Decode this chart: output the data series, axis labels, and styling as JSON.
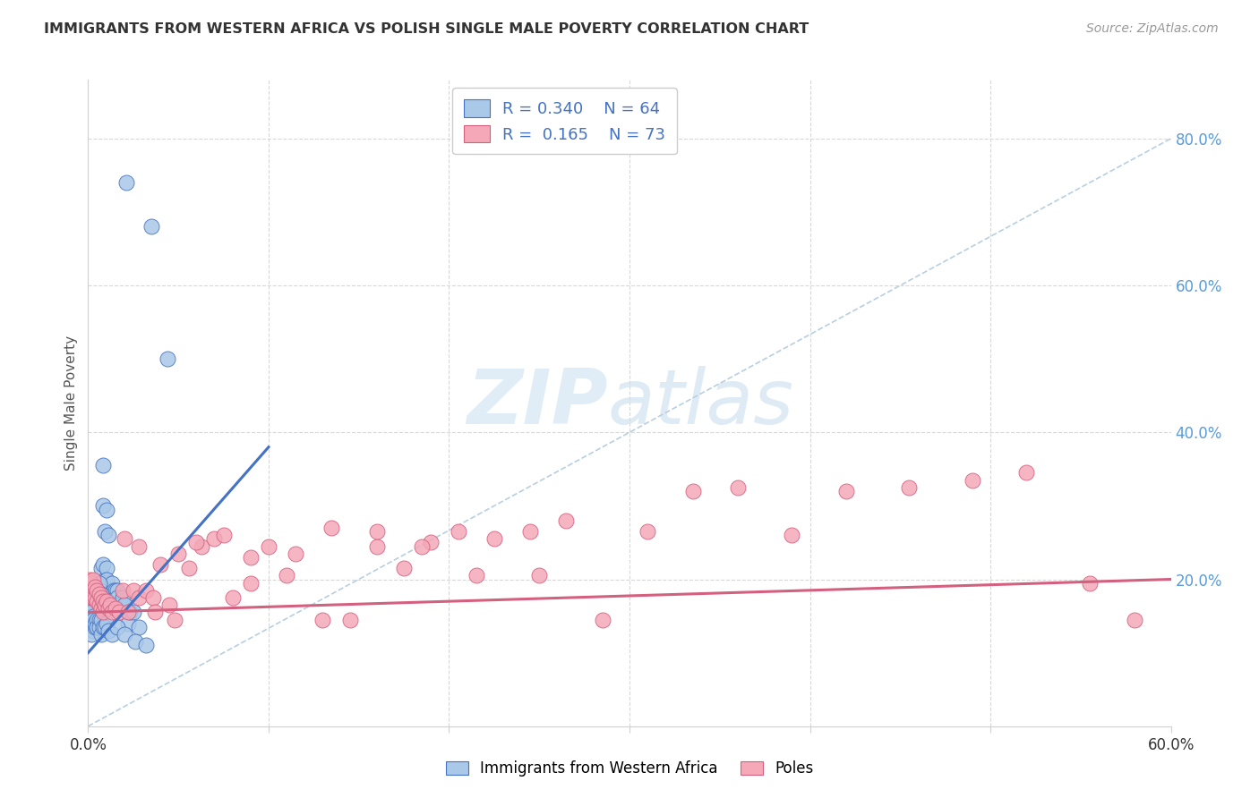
{
  "title": "IMMIGRANTS FROM WESTERN AFRICA VS POLISH SINGLE MALE POVERTY CORRELATION CHART",
  "source": "Source: ZipAtlas.com",
  "ylabel": "Single Male Poverty",
  "xlim": [
    0.0,
    0.6
  ],
  "ylim": [
    0.0,
    0.88
  ],
  "yticks_right": [
    0.2,
    0.4,
    0.6,
    0.8
  ],
  "yticks_right_labels": [
    "20.0%",
    "40.0%",
    "60.0%",
    "80.0%"
  ],
  "right_axis_color": "#5b9bd5",
  "color_blue": "#aac8e8",
  "color_pink": "#f4a8b8",
  "edge_blue": "#4472c4",
  "edge_pink": "#d46080",
  "blue_x": [
    0.021,
    0.035,
    0.044,
    0.008,
    0.008,
    0.009,
    0.01,
    0.011,
    0.007,
    0.008,
    0.009,
    0.01,
    0.01,
    0.011,
    0.012,
    0.013,
    0.014,
    0.014,
    0.015,
    0.015,
    0.016,
    0.016,
    0.017,
    0.018,
    0.019,
    0.019,
    0.02,
    0.022,
    0.023,
    0.025,
    0.028,
    0.006,
    0.006,
    0.007,
    0.006,
    0.005,
    0.004,
    0.004,
    0.003,
    0.003,
    0.002,
    0.001,
    0.001,
    0.002,
    0.003,
    0.003,
    0.003,
    0.004,
    0.004,
    0.005,
    0.005,
    0.006,
    0.006,
    0.007,
    0.007,
    0.008,
    0.009,
    0.01,
    0.011,
    0.013,
    0.016,
    0.02,
    0.026,
    0.032
  ],
  "blue_y": [
    0.74,
    0.68,
    0.5,
    0.355,
    0.3,
    0.265,
    0.295,
    0.26,
    0.215,
    0.22,
    0.2,
    0.215,
    0.2,
    0.175,
    0.185,
    0.195,
    0.185,
    0.175,
    0.185,
    0.175,
    0.185,
    0.175,
    0.165,
    0.165,
    0.16,
    0.175,
    0.165,
    0.14,
    0.155,
    0.155,
    0.135,
    0.185,
    0.195,
    0.18,
    0.155,
    0.165,
    0.155,
    0.145,
    0.145,
    0.13,
    0.125,
    0.15,
    0.165,
    0.155,
    0.15,
    0.14,
    0.145,
    0.135,
    0.14,
    0.145,
    0.135,
    0.145,
    0.135,
    0.145,
    0.125,
    0.135,
    0.135,
    0.14,
    0.13,
    0.125,
    0.135,
    0.125,
    0.115,
    0.11
  ],
  "pink_x": [
    0.001,
    0.001,
    0.002,
    0.002,
    0.003,
    0.003,
    0.003,
    0.004,
    0.004,
    0.005,
    0.005,
    0.006,
    0.006,
    0.007,
    0.007,
    0.008,
    0.008,
    0.009,
    0.01,
    0.011,
    0.012,
    0.013,
    0.015,
    0.017,
    0.019,
    0.022,
    0.025,
    0.028,
    0.032,
    0.036,
    0.04,
    0.045,
    0.05,
    0.056,
    0.063,
    0.07,
    0.08,
    0.09,
    0.1,
    0.115,
    0.13,
    0.145,
    0.16,
    0.175,
    0.19,
    0.205,
    0.225,
    0.245,
    0.265,
    0.285,
    0.31,
    0.335,
    0.36,
    0.39,
    0.42,
    0.455,
    0.49,
    0.52,
    0.555,
    0.58,
    0.02,
    0.028,
    0.037,
    0.048,
    0.06,
    0.075,
    0.09,
    0.11,
    0.135,
    0.16,
    0.185,
    0.215,
    0.25
  ],
  "pink_y": [
    0.2,
    0.185,
    0.195,
    0.175,
    0.2,
    0.185,
    0.175,
    0.19,
    0.175,
    0.185,
    0.17,
    0.18,
    0.165,
    0.175,
    0.16,
    0.17,
    0.155,
    0.165,
    0.17,
    0.16,
    0.165,
    0.155,
    0.16,
    0.155,
    0.185,
    0.155,
    0.185,
    0.175,
    0.185,
    0.175,
    0.22,
    0.165,
    0.235,
    0.215,
    0.245,
    0.255,
    0.175,
    0.23,
    0.245,
    0.235,
    0.145,
    0.145,
    0.245,
    0.215,
    0.25,
    0.265,
    0.255,
    0.265,
    0.28,
    0.145,
    0.265,
    0.32,
    0.325,
    0.26,
    0.32,
    0.325,
    0.335,
    0.345,
    0.195,
    0.145,
    0.255,
    0.245,
    0.155,
    0.145,
    0.25,
    0.26,
    0.195,
    0.205,
    0.27,
    0.265,
    0.245,
    0.205,
    0.205
  ],
  "blue_trend_x": [
    0.0,
    0.1
  ],
  "blue_trend_y_start": 0.1,
  "blue_trend_y_end": 0.38,
  "pink_trend_x": [
    0.0,
    0.6
  ],
  "pink_trend_y_start": 0.155,
  "pink_trend_y_end": 0.2
}
